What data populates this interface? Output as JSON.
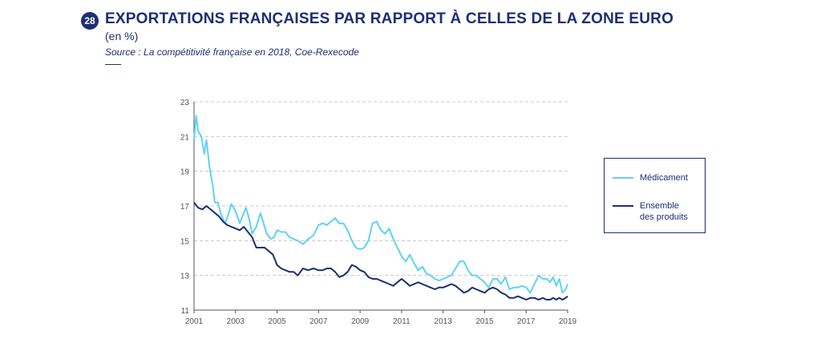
{
  "header": {
    "number": "28",
    "title": "EXPORTATIONS FRANÇAISES PAR RAPPORT À CELLES DE LA ZONE EURO",
    "subtitle": "(en %)",
    "source": "Source : La compétitivité française en 2018, Coe-Rexecode"
  },
  "legend": {
    "items": [
      {
        "label": "Médicament"
      },
      {
        "label": "Ensemble\ndes produits"
      }
    ]
  },
  "chart_data": {
    "type": "line",
    "xlim": [
      2001,
      2019
    ],
    "ylim": [
      11,
      23
    ],
    "xticks": [
      2001,
      2003,
      2005,
      2007,
      2009,
      2011,
      2013,
      2015,
      2017,
      2019
    ],
    "yticks": [
      11,
      13,
      15,
      17,
      19,
      21,
      23
    ],
    "grid": "horizontal dashed",
    "legend_position": "right",
    "colors": {
      "Médicament": "#5fd3f0",
      "Ensemble des produits": "#1c2f73",
      "axis": "#555555",
      "grid": "#c8c8c8"
    },
    "series": [
      {
        "name": "Médicament",
        "x": [
          2001.0,
          2001.1,
          2001.2,
          2001.35,
          2001.5,
          2001.6,
          2001.75,
          2001.9,
          2002.0,
          2002.15,
          2002.3,
          2002.5,
          2002.65,
          2002.8,
          2003.0,
          2003.2,
          2003.3,
          2003.5,
          2003.65,
          2003.8,
          2004.0,
          2004.2,
          2004.35,
          2004.5,
          2004.7,
          2004.85,
          2005.0,
          2005.2,
          2005.4,
          2005.6,
          2005.8,
          2006.0,
          2006.25,
          2006.5,
          2006.75,
          2007.0,
          2007.2,
          2007.4,
          2007.6,
          2007.8,
          2008.0,
          2008.2,
          2008.4,
          2008.6,
          2008.8,
          2009.0,
          2009.2,
          2009.4,
          2009.6,
          2009.8,
          2010.0,
          2010.2,
          2010.4,
          2010.6,
          2010.8,
          2011.0,
          2011.2,
          2011.4,
          2011.6,
          2011.8,
          2012.0,
          2012.2,
          2012.4,
          2012.6,
          2012.8,
          2013.0,
          2013.2,
          2013.4,
          2013.6,
          2013.8,
          2014.0,
          2014.2,
          2014.4,
          2014.6,
          2014.8,
          2015.0,
          2015.2,
          2015.4,
          2015.6,
          2015.8,
          2016.0,
          2016.2,
          2016.4,
          2016.6,
          2016.8,
          2017.0,
          2017.2,
          2017.4,
          2017.6,
          2017.8,
          2018.0,
          2018.15,
          2018.3,
          2018.45,
          2018.6,
          2018.75,
          2018.9,
          2019.0
        ],
        "values": [
          20.8,
          22.2,
          21.3,
          21.0,
          20.0,
          20.8,
          19.2,
          18.2,
          17.2,
          17.2,
          16.5,
          16.0,
          16.5,
          17.1,
          16.7,
          16.0,
          16.3,
          16.9,
          16.3,
          15.4,
          15.8,
          16.6,
          16.0,
          15.4,
          15.1,
          15.2,
          15.6,
          15.5,
          15.5,
          15.2,
          15.1,
          15.0,
          14.8,
          15.1,
          15.3,
          15.9,
          16.0,
          15.9,
          16.1,
          16.3,
          16.0,
          16.0,
          15.6,
          15.0,
          14.6,
          14.5,
          14.6,
          15.0,
          16.0,
          16.1,
          15.6,
          15.4,
          15.7,
          15.1,
          14.6,
          14.1,
          13.8,
          14.2,
          13.7,
          13.3,
          13.5,
          13.1,
          13.0,
          12.8,
          12.7,
          12.8,
          12.9,
          13.0,
          13.4,
          13.8,
          13.8,
          13.3,
          13.0,
          13.0,
          12.8,
          12.6,
          12.3,
          12.8,
          12.8,
          12.5,
          12.9,
          12.2,
          12.3,
          12.3,
          12.4,
          12.3,
          12.0,
          12.5,
          13.0,
          12.8,
          12.8,
          12.6,
          12.9,
          12.4,
          12.8,
          12.0,
          12.2,
          12.5
        ]
      },
      {
        "name": "Ensemble des produits",
        "x": [
          2001.0,
          2001.2,
          2001.4,
          2001.6,
          2001.8,
          2002.0,
          2002.2,
          2002.4,
          2002.6,
          2002.8,
          2003.0,
          2003.2,
          2003.4,
          2003.6,
          2003.8,
          2004.0,
          2004.2,
          2004.4,
          2004.6,
          2004.8,
          2005.0,
          2005.2,
          2005.4,
          2005.6,
          2005.8,
          2006.0,
          2006.25,
          2006.5,
          2006.75,
          2007.0,
          2007.2,
          2007.4,
          2007.6,
          2007.8,
          2008.0,
          2008.2,
          2008.4,
          2008.6,
          2008.8,
          2009.0,
          2009.2,
          2009.4,
          2009.6,
          2009.8,
          2010.0,
          2010.2,
          2010.4,
          2010.6,
          2010.8,
          2011.0,
          2011.2,
          2011.4,
          2011.6,
          2011.8,
          2012.0,
          2012.2,
          2012.4,
          2012.6,
          2012.8,
          2013.0,
          2013.2,
          2013.4,
          2013.6,
          2013.8,
          2014.0,
          2014.2,
          2014.4,
          2014.6,
          2014.8,
          2015.0,
          2015.2,
          2015.4,
          2015.6,
          2015.8,
          2016.0,
          2016.2,
          2016.4,
          2016.6,
          2016.8,
          2017.0,
          2017.2,
          2017.4,
          2017.6,
          2017.8,
          2018.0,
          2018.15,
          2018.3,
          2018.45,
          2018.6,
          2018.75,
          2018.9,
          2019.0
        ],
        "values": [
          17.2,
          16.9,
          16.8,
          17.0,
          16.8,
          16.6,
          16.4,
          16.1,
          15.9,
          15.8,
          15.7,
          15.6,
          15.8,
          15.5,
          15.2,
          14.6,
          14.6,
          14.6,
          14.4,
          14.2,
          13.6,
          13.4,
          13.3,
          13.2,
          13.2,
          13.0,
          13.4,
          13.3,
          13.4,
          13.3,
          13.3,
          13.4,
          13.4,
          13.2,
          12.9,
          13.0,
          13.2,
          13.6,
          13.5,
          13.3,
          13.2,
          12.9,
          12.8,
          12.8,
          12.7,
          12.6,
          12.5,
          12.4,
          12.6,
          12.8,
          12.6,
          12.4,
          12.5,
          12.6,
          12.5,
          12.4,
          12.3,
          12.2,
          12.3,
          12.3,
          12.4,
          12.5,
          12.4,
          12.2,
          12.0,
          12.1,
          12.3,
          12.2,
          12.1,
          12.0,
          12.2,
          12.3,
          12.2,
          12.0,
          11.9,
          11.7,
          11.7,
          11.8,
          11.7,
          11.6,
          11.7,
          11.7,
          11.6,
          11.7,
          11.6,
          11.6,
          11.7,
          11.6,
          11.7,
          11.6,
          11.7,
          11.8
        ]
      }
    ]
  }
}
